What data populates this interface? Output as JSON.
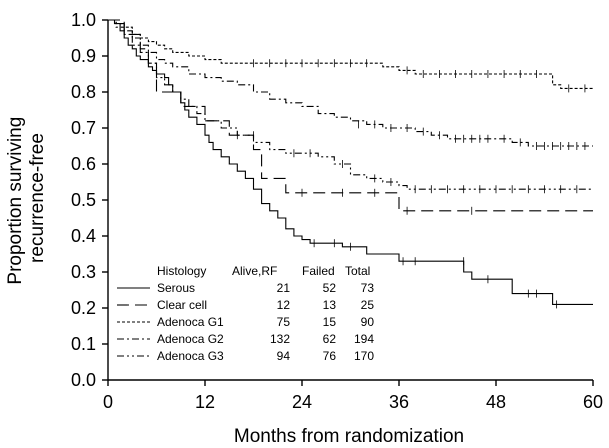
{
  "chart_data": {
    "type": "line",
    "subtype": "kaplan-meier step curves with censor ticks",
    "xlabel": "Months from randomization",
    "ylabel_lines": [
      "Proportion surviving",
      "recurrence-free"
    ],
    "xlim": [
      0,
      60
    ],
    "ylim": [
      0.0,
      1.0
    ],
    "xticks": [
      0,
      12,
      24,
      36,
      48,
      60
    ],
    "yticks": [
      0.0,
      0.1,
      0.2,
      0.3,
      0.4,
      0.5,
      0.6,
      0.7,
      0.8,
      0.9,
      1.0
    ],
    "grid": false,
    "legend": {
      "placement": "bottom-left",
      "title": "Histology",
      "columns": [
        "Alive,RF",
        "Failed",
        "Total"
      ],
      "rows": [
        {
          "name": "Serous",
          "alive_rf": "21",
          "failed": "52",
          "total": "73"
        },
        {
          "name": "Clear cell",
          "alive_rf": "12",
          "failed": "13",
          "total": "25"
        },
        {
          "name": "Adenoca G1",
          "alive_rf": "75",
          "failed": "15",
          "total": "90"
        },
        {
          "name": "Adenoca G2",
          "alive_rf": "132",
          "failed": "62",
          "total": "194"
        },
        {
          "name": "Adenoca G3",
          "alive_rf": "94",
          "failed": "76",
          "total": "170"
        }
      ]
    },
    "series": [
      {
        "name": "Serous",
        "dash": "solid",
        "points": [
          [
            0,
            1.0
          ],
          [
            0.8,
            0.99
          ],
          [
            1.5,
            0.97
          ],
          [
            2,
            0.95
          ],
          [
            2.5,
            0.93
          ],
          [
            3,
            0.92
          ],
          [
            3.5,
            0.9
          ],
          [
            4,
            0.89
          ],
          [
            5,
            0.87
          ],
          [
            5.5,
            0.86
          ],
          [
            6,
            0.85
          ],
          [
            7,
            0.84
          ],
          [
            7.5,
            0.82
          ],
          [
            8,
            0.8
          ],
          [
            9,
            0.77
          ],
          [
            9.5,
            0.75
          ],
          [
            10,
            0.73
          ],
          [
            11,
            0.71
          ],
          [
            12,
            0.68
          ],
          [
            12.5,
            0.66
          ],
          [
            13,
            0.64
          ],
          [
            14,
            0.62
          ],
          [
            15,
            0.6
          ],
          [
            16,
            0.58
          ],
          [
            17,
            0.56
          ],
          [
            18,
            0.53
          ],
          [
            19,
            0.49
          ],
          [
            20,
            0.47
          ],
          [
            21,
            0.45
          ],
          [
            22,
            0.42
          ],
          [
            23,
            0.4
          ],
          [
            24,
            0.39
          ],
          [
            25,
            0.38
          ],
          [
            29,
            0.37
          ],
          [
            32,
            0.35
          ],
          [
            36,
            0.33
          ],
          [
            44,
            0.3
          ],
          [
            45,
            0.28
          ],
          [
            50,
            0.24
          ],
          [
            55,
            0.21
          ],
          [
            60,
            0.21
          ]
        ],
        "censors": [
          [
            25.5,
            0.38
          ],
          [
            28,
            0.38
          ],
          [
            30,
            0.37
          ],
          [
            36.5,
            0.33
          ],
          [
            38,
            0.33
          ],
          [
            44,
            0.33
          ],
          [
            47,
            0.28
          ],
          [
            52,
            0.24
          ],
          [
            53,
            0.24
          ],
          [
            55.5,
            0.21
          ]
        ]
      },
      {
        "name": "Clear cell",
        "dash": "long-dash",
        "points": [
          [
            0,
            1.0
          ],
          [
            2,
            0.96
          ],
          [
            4,
            0.92
          ],
          [
            5,
            0.88
          ],
          [
            6,
            0.8
          ],
          [
            9,
            0.76
          ],
          [
            12,
            0.72
          ],
          [
            15,
            0.68
          ],
          [
            18,
            0.64
          ],
          [
            19,
            0.56
          ],
          [
            22,
            0.52
          ],
          [
            36,
            0.47
          ],
          [
            60,
            0.47
          ]
        ],
        "censors": [
          [
            16,
            0.68
          ],
          [
            18,
            0.68
          ],
          [
            24,
            0.52
          ],
          [
            29,
            0.52
          ],
          [
            33,
            0.52
          ],
          [
            37,
            0.47
          ],
          [
            45,
            0.47
          ]
        ]
      },
      {
        "name": "Adenoca G1",
        "dash": "short-dash",
        "points": [
          [
            0,
            1.0
          ],
          [
            1,
            0.99
          ],
          [
            2,
            0.98
          ],
          [
            3,
            0.96
          ],
          [
            4,
            0.95
          ],
          [
            5,
            0.94
          ],
          [
            6,
            0.93
          ],
          [
            7,
            0.92
          ],
          [
            8,
            0.91
          ],
          [
            10,
            0.9
          ],
          [
            12,
            0.89
          ],
          [
            14,
            0.88
          ],
          [
            16,
            0.88
          ],
          [
            34,
            0.87
          ],
          [
            36,
            0.86
          ],
          [
            38,
            0.85
          ],
          [
            55,
            0.82
          ],
          [
            56,
            0.81
          ],
          [
            60,
            0.81
          ]
        ],
        "censors": [
          [
            18,
            0.88
          ],
          [
            20,
            0.88
          ],
          [
            22,
            0.88
          ],
          [
            24,
            0.88
          ],
          [
            26,
            0.88
          ],
          [
            28,
            0.88
          ],
          [
            30,
            0.88
          ],
          [
            32,
            0.88
          ],
          [
            37,
            0.86
          ],
          [
            39,
            0.85
          ],
          [
            41,
            0.85
          ],
          [
            43,
            0.85
          ],
          [
            45,
            0.85
          ],
          [
            47,
            0.85
          ],
          [
            49,
            0.85
          ],
          [
            51,
            0.85
          ],
          [
            53,
            0.85
          ],
          [
            57,
            0.81
          ],
          [
            59,
            0.81
          ]
        ]
      },
      {
        "name": "Adenoca G2",
        "dash": "dash-dot",
        "points": [
          [
            0,
            1.0
          ],
          [
            1,
            0.99
          ],
          [
            2,
            0.97
          ],
          [
            3,
            0.95
          ],
          [
            4,
            0.93
          ],
          [
            5,
            0.91
          ],
          [
            6,
            0.89
          ],
          [
            7,
            0.88
          ],
          [
            8,
            0.87
          ],
          [
            10,
            0.85
          ],
          [
            12,
            0.84
          ],
          [
            14,
            0.83
          ],
          [
            16,
            0.82
          ],
          [
            18,
            0.8
          ],
          [
            20,
            0.78
          ],
          [
            22,
            0.77
          ],
          [
            24,
            0.76
          ],
          [
            26,
            0.74
          ],
          [
            28,
            0.73
          ],
          [
            30,
            0.72
          ],
          [
            32,
            0.71
          ],
          [
            34,
            0.7
          ],
          [
            36,
            0.7
          ],
          [
            38,
            0.69
          ],
          [
            40,
            0.68
          ],
          [
            42,
            0.67
          ],
          [
            48,
            0.67
          ],
          [
            50,
            0.66
          ],
          [
            52,
            0.65
          ],
          [
            60,
            0.65
          ]
        ],
        "censors": [
          [
            31,
            0.71
          ],
          [
            33,
            0.71
          ],
          [
            35,
            0.7
          ],
          [
            37,
            0.7
          ],
          [
            39,
            0.69
          ],
          [
            41,
            0.68
          ],
          [
            43,
            0.67
          ],
          [
            44,
            0.67
          ],
          [
            45,
            0.67
          ],
          [
            46,
            0.67
          ],
          [
            47,
            0.67
          ],
          [
            49,
            0.67
          ],
          [
            51,
            0.66
          ],
          [
            53,
            0.65
          ],
          [
            54,
            0.65
          ],
          [
            55,
            0.65
          ],
          [
            56,
            0.65
          ],
          [
            57,
            0.65
          ],
          [
            58,
            0.65
          ],
          [
            59,
            0.65
          ]
        ]
      },
      {
        "name": "Adenoca G3",
        "dash": "dash-dot-dot",
        "points": [
          [
            0,
            1.0
          ],
          [
            1,
            0.98
          ],
          [
            2,
            0.96
          ],
          [
            3,
            0.93
          ],
          [
            4,
            0.91
          ],
          [
            5,
            0.88
          ],
          [
            6,
            0.84
          ],
          [
            7,
            0.82
          ],
          [
            8,
            0.8
          ],
          [
            9,
            0.78
          ],
          [
            10,
            0.76
          ],
          [
            11,
            0.74
          ],
          [
            12,
            0.72
          ],
          [
            14,
            0.7
          ],
          [
            16,
            0.68
          ],
          [
            18,
            0.66
          ],
          [
            20,
            0.64
          ],
          [
            22,
            0.63
          ],
          [
            24,
            0.63
          ],
          [
            26,
            0.62
          ],
          [
            28,
            0.6
          ],
          [
            30,
            0.57
          ],
          [
            32,
            0.56
          ],
          [
            34,
            0.55
          ],
          [
            36,
            0.54
          ],
          [
            37,
            0.53
          ],
          [
            60,
            0.53
          ]
        ],
        "censors": [
          [
            23,
            0.63
          ],
          [
            25,
            0.63
          ],
          [
            29,
            0.6
          ],
          [
            33,
            0.56
          ],
          [
            35,
            0.55
          ],
          [
            38,
            0.53
          ],
          [
            40,
            0.53
          ],
          [
            42,
            0.53
          ],
          [
            44,
            0.53
          ],
          [
            46,
            0.53
          ],
          [
            48,
            0.53
          ],
          [
            50,
            0.53
          ],
          [
            52,
            0.53
          ],
          [
            54,
            0.53
          ],
          [
            56,
            0.53
          ],
          [
            58,
            0.53
          ]
        ]
      }
    ]
  }
}
